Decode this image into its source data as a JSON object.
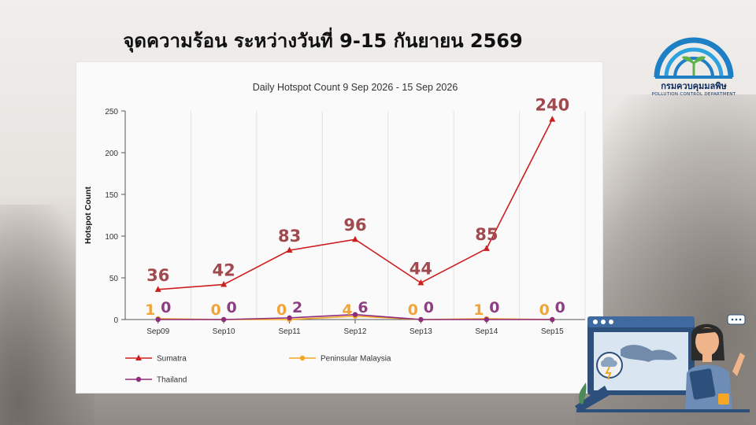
{
  "headline": "จุดความร้อน ระหว่างวันที่ 9-15 กันยายน 2569",
  "logo": {
    "name_th": "กรมควบคุมมลพิษ",
    "name_en": "POLLUTION CONTROL DEPARTMENT",
    "icon": "pcd-logo-icon",
    "ring_color": "#1e7fc4",
    "sprout_color": "#5fb24a"
  },
  "illustration": {
    "icon": "person-with-tablet-weather-dashboard-icon"
  },
  "chart_data": {
    "type": "line",
    "title": "Daily Hotspot Count 9 Sep 2026 - 15 Sep 2026",
    "xlabel": "",
    "ylabel": "Hotspot Count",
    "categories": [
      "Sep09",
      "Sep10",
      "Sep11",
      "Sep12",
      "Sep13",
      "Sep14",
      "Sep15"
    ],
    "ylim": [
      0,
      250
    ],
    "yticks": [
      0,
      50,
      100,
      150,
      200,
      250
    ],
    "grid": "vertical",
    "legend_placement": "bottom",
    "series": [
      {
        "name": "Sumatra",
        "color": "#cc1f1f",
        "marker": "triangle",
        "values": [
          36,
          42,
          83,
          96,
          44,
          85,
          240
        ],
        "label_color": "#a0494f"
      },
      {
        "name": "Peninsular Malaysia",
        "color": "#f5a623",
        "marker": "circle",
        "values": [
          1,
          0,
          0,
          4,
          0,
          1,
          0
        ],
        "label_color": "#f0a53a"
      },
      {
        "name": "Thailand",
        "color": "#8e2c7d",
        "marker": "circle",
        "values": [
          0,
          0,
          2,
          6,
          0,
          0,
          0
        ],
        "label_color": "#8e3e82"
      }
    ]
  }
}
